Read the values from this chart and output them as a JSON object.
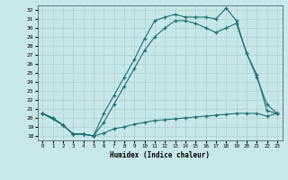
{
  "xlabel": "Humidex (Indice chaleur)",
  "background_color": "#c8e8e8",
  "line_color": "#1a7070",
  "xlim": [
    -0.5,
    23.5
  ],
  "ylim": [
    17.5,
    32.5
  ],
  "yticks": [
    18,
    19,
    20,
    21,
    22,
    23,
    24,
    25,
    26,
    27,
    28,
    29,
    30,
    31,
    32
  ],
  "xticks": [
    0,
    1,
    2,
    3,
    4,
    5,
    6,
    7,
    8,
    9,
    10,
    11,
    12,
    13,
    14,
    15,
    16,
    17,
    18,
    19,
    20,
    21,
    22,
    23
  ],
  "line1_x": [
    0,
    1,
    2,
    3,
    4,
    5,
    6,
    7,
    8,
    9,
    10,
    11,
    12,
    13,
    14,
    15,
    16,
    17,
    18,
    19,
    20,
    21,
    22,
    23
  ],
  "line1_y": [
    20.5,
    20.0,
    19.2,
    18.2,
    18.2,
    18.0,
    20.5,
    22.5,
    24.5,
    26.5,
    28.8,
    30.8,
    31.2,
    31.5,
    31.2,
    31.2,
    31.2,
    31.0,
    32.2,
    30.8,
    27.2,
    24.8,
    20.8,
    20.5
  ],
  "line2_x": [
    0,
    2,
    3,
    4,
    5,
    6,
    7,
    8,
    9,
    10,
    11,
    12,
    13,
    14,
    15,
    16,
    17,
    18,
    19,
    20,
    21,
    22,
    23
  ],
  "line2_y": [
    20.5,
    19.2,
    18.2,
    18.2,
    18.0,
    19.5,
    21.5,
    23.5,
    25.5,
    27.5,
    29.0,
    30.0,
    30.8,
    30.8,
    30.5,
    30.0,
    29.5,
    30.0,
    30.5,
    27.2,
    24.5,
    21.5,
    20.5
  ],
  "line3_x": [
    0,
    1,
    2,
    3,
    4,
    5,
    6,
    7,
    8,
    9,
    10,
    11,
    12,
    13,
    14,
    15,
    16,
    17,
    18,
    19,
    20,
    21,
    22,
    23
  ],
  "line3_y": [
    20.5,
    20.0,
    19.2,
    18.2,
    18.2,
    18.0,
    18.3,
    18.8,
    19.0,
    19.3,
    19.5,
    19.7,
    19.8,
    19.9,
    20.0,
    20.1,
    20.2,
    20.3,
    20.4,
    20.5,
    20.5,
    20.5,
    20.2,
    20.5
  ]
}
